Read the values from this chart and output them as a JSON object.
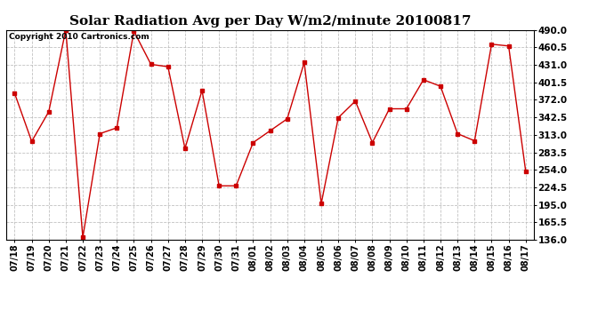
{
  "title": "Solar Radiation Avg per Day W/m2/minute 20100817",
  "copyright": "Copyright 2010 Cartronics.com",
  "dates": [
    "07/18",
    "07/19",
    "07/20",
    "07/21",
    "07/22",
    "07/23",
    "07/24",
    "07/25",
    "07/26",
    "07/27",
    "07/28",
    "07/29",
    "07/30",
    "07/31",
    "08/01",
    "08/02",
    "08/03",
    "08/04",
    "08/05",
    "08/06",
    "08/07",
    "08/08",
    "08/09",
    "08/10",
    "08/11",
    "08/12",
    "08/13",
    "08/14",
    "08/15",
    "08/16",
    "08/17"
  ],
  "values": [
    383,
    302,
    352,
    490,
    140,
    315,
    325,
    488,
    432,
    428,
    290,
    388,
    227,
    227,
    300,
    320,
    340,
    435,
    197,
    342,
    370,
    300,
    357,
    357,
    406,
    395,
    315,
    303,
    466,
    463,
    252
  ],
  "line_color": "#cc0000",
  "bg_color": "#ffffff",
  "grid_color": "#bbbbbb",
  "ylim_min": 136.0,
  "ylim_max": 490.0,
  "yticks": [
    136.0,
    165.5,
    195.0,
    224.5,
    254.0,
    283.5,
    313.0,
    342.5,
    372.0,
    401.5,
    431.0,
    460.5,
    490.0
  ],
  "title_fontsize": 11,
  "copyright_fontsize": 6.5,
  "tick_fontsize": 7,
  "ytick_fontsize": 7.5
}
